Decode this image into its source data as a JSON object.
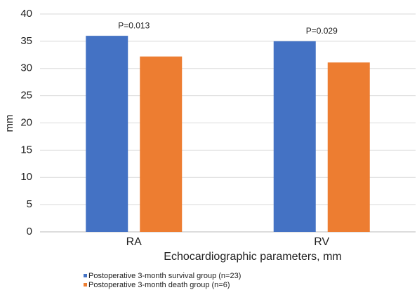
{
  "chart_data": {
    "type": "bar",
    "y_label": "mm",
    "x_label": "Echocardiographic parameters, mm",
    "categories": [
      "RA",
      "RV"
    ],
    "series": [
      {
        "name": "Postoperative 3-month survival group (n=23)",
        "color": "#4472c4",
        "values": [
          36,
          35
        ]
      },
      {
        "name": "Postoperative 3-month death group (n=6)",
        "color": "#ed7d31",
        "values": [
          32.2,
          31.1
        ]
      }
    ],
    "annotations": [
      "P=0.013",
      "P=0.029"
    ],
    "ylim": [
      0,
      40
    ],
    "yticks": [
      0,
      5,
      10,
      15,
      20,
      25,
      30,
      35,
      40
    ],
    "grid": true
  }
}
